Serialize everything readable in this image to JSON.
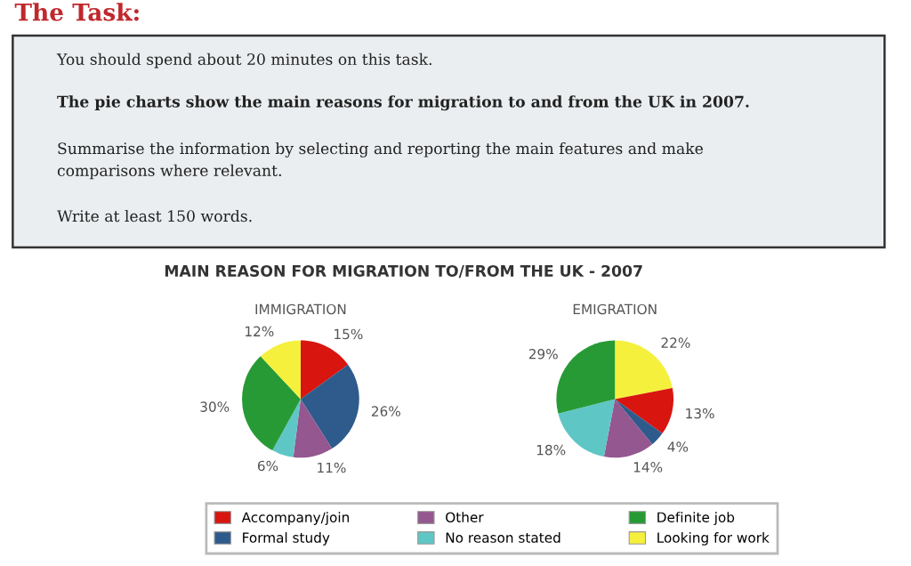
{
  "chart_data": [
    {
      "type": "pie",
      "title": "IMMIGRATION",
      "categories": [
        "Accompany/join",
        "Formal study",
        "Other",
        "No reason stated",
        "Definite job",
        "Looking for work"
      ],
      "values": [
        15,
        26,
        11,
        6,
        30,
        12
      ],
      "colors": [
        "#d8150f",
        "#2e5b8c",
        "#94578f",
        "#5fc6c6",
        "#279a35",
        "#f5f03c"
      ],
      "value_labels": [
        "15%",
        "26%",
        "11%",
        "6%",
        "30%",
        "12%"
      ],
      "legend": "bottom",
      "annotations": [
        "The Task:",
        "You should spend about 20 minutes on this task.",
        "The pie charts show the main reasons for migration to and from the UK in 2007.",
        "Summarise the information by selecting and reporting the main features and make\ncomparisons where relevant.",
        "Write at least 150 words.",
        "MAIN REASON FOR MIGRATION TO/FROM THE UK - 2007"
      ]
    },
    {
      "type": "pie",
      "title": "EMIGRATION",
      "categories": [
        null,
        null,
        null,
        null,
        null,
        null
      ],
      "values": [
        22,
        13,
        4,
        14,
        18,
        29
      ],
      "colors": [
        "#f5f03c",
        "#d8150f",
        "#2e5b8c",
        "#94578f",
        "#5fc6c6",
        "#279a35"
      ],
      "value_labels": [
        "22%",
        "13%",
        "4%",
        "14%",
        "18%",
        "29%"
      ]
    }
  ]
}
